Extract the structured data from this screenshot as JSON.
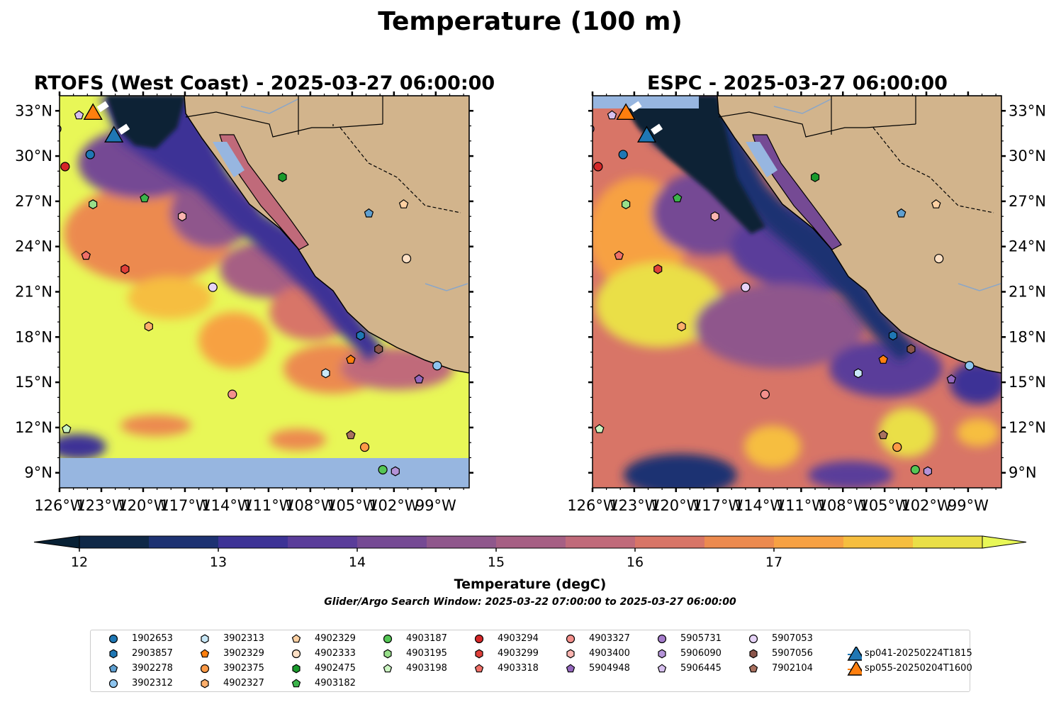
{
  "figure_title": "Temperature (100 m)",
  "panels": [
    {
      "id": "rtofs",
      "title": "RTOFS (West Coast) - 2025-03-27 06:00:00"
    },
    {
      "id": "espc",
      "title": "ESPC - 2025-03-27 06:00:00"
    }
  ],
  "axes": {
    "lat_ticks": [
      "33°N",
      "30°N",
      "27°N",
      "24°N",
      "21°N",
      "18°N",
      "15°N",
      "12°N",
      "9°N"
    ],
    "lon_ticks": [
      "126°W",
      "123°W",
      "120°W",
      "117°W",
      "114°W",
      "111°W",
      "108°W",
      "105°W",
      "102°W",
      "99°W"
    ],
    "lon_range": [
      -126,
      -96.6
    ],
    "lat_range": [
      8.0,
      34.0
    ]
  },
  "colorbar": {
    "label": "Temperature (degC)",
    "ticks": [
      "12",
      "13",
      "14",
      "15",
      "16",
      "17"
    ],
    "min": 11.5,
    "max": 18.0,
    "colors": [
      "#082135",
      "#0f2847",
      "#1d3272",
      "#3d3396",
      "#5a3d9a",
      "#754a94",
      "#8f578c",
      "#a65f84",
      "#c06a7a",
      "#d87567",
      "#ec8a4f",
      "#f7a143",
      "#f6be3f",
      "#eadf47",
      "#e8f757"
    ]
  },
  "search_window": "Glider/Argo Search Window: 2025-03-22 07:00:00 to 2025-03-27 06:00:00",
  "colors": {
    "land": "#d2b48c",
    "nodata": "#97b6e0"
  },
  "floats": [
    {
      "id": "1902653",
      "shape": "circle",
      "color": "#1f77b4",
      "lon": -123.8,
      "lat": 30.1
    },
    {
      "id": "2903857",
      "shape": "hexagon",
      "color": "#1f77b4",
      "lon": -104.4,
      "lat": 18.1
    },
    {
      "id": "3902278",
      "shape": "pentagon",
      "color": "#5f9fd0",
      "lon": -103.8,
      "lat": 26.2
    },
    {
      "id": "3902312",
      "shape": "circle",
      "color": "#8ec5ef",
      "lon": -98.9,
      "lat": 16.1
    },
    {
      "id": "3902313",
      "shape": "hexagon",
      "color": "#c8e8f7",
      "lon": -106.9,
      "lat": 15.6
    },
    {
      "id": "3902329",
      "shape": "pentagon",
      "color": "#ff7f0e",
      "lon": -105.1,
      "lat": 16.5
    },
    {
      "id": "3902375",
      "shape": "circle",
      "color": "#fd9a47",
      "lon": -104.1,
      "lat": 10.7
    },
    {
      "id": "4902327",
      "shape": "hexagon",
      "color": "#fdae6b",
      "lon": -119.6,
      "lat": 18.7
    },
    {
      "id": "4902329",
      "shape": "pentagon",
      "color": "#fdd0a2",
      "lon": -101.3,
      "lat": 26.8
    },
    {
      "id": "4902333",
      "shape": "circle",
      "color": "#fde0c5",
      "lon": -101.1,
      "lat": 23.2
    },
    {
      "id": "4902475",
      "shape": "hexagon",
      "color": "#1a9a2c",
      "lon": -110.0,
      "lat": 28.6
    },
    {
      "id": "4903182",
      "shape": "pentagon",
      "color": "#3cb44b",
      "lon": -119.9,
      "lat": 27.2
    },
    {
      "id": "4903187",
      "shape": "circle",
      "color": "#55c655",
      "lon": -102.8,
      "lat": 9.2
    },
    {
      "id": "4903195",
      "shape": "hexagon",
      "color": "#98df8a",
      "lon": -123.6,
      "lat": 26.8
    },
    {
      "id": "4903198",
      "shape": "pentagon",
      "color": "#ccf5c2",
      "lon": -125.5,
      "lat": 11.9
    },
    {
      "id": "4903294",
      "shape": "circle",
      "color": "#d62728",
      "lon": -125.6,
      "lat": 29.3
    },
    {
      "id": "4903299",
      "shape": "hexagon",
      "color": "#e0403a",
      "lon": -121.3,
      "lat": 22.5
    },
    {
      "id": "4903318",
      "shape": "pentagon",
      "color": "#f07068",
      "lon": -124.1,
      "lat": 23.4
    },
    {
      "id": "4903327",
      "shape": "circle",
      "color": "#f4908c",
      "lon": -113.6,
      "lat": 14.2
    },
    {
      "id": "4903400",
      "shape": "hexagon",
      "color": "#fbb4b0",
      "lon": -117.2,
      "lat": 26.0
    },
    {
      "id": "5904948",
      "shape": "pentagon",
      "color": "#9467bd",
      "lon": -100.2,
      "lat": 15.2
    },
    {
      "id": "5905731",
      "shape": "circle",
      "color": "#a57ccb",
      "lon": -126.2,
      "lat": 31.8
    },
    {
      "id": "5906090",
      "shape": "hexagon",
      "color": "#b493d8",
      "lon": -101.9,
      "lat": 9.1
    },
    {
      "id": "5906445",
      "shape": "pentagon",
      "color": "#d7c0ef",
      "lon": -124.6,
      "lat": 32.7
    },
    {
      "id": "5907053",
      "shape": "circle",
      "color": "#e6d3f7",
      "lon": -115.0,
      "lat": 21.3
    },
    {
      "id": "5907056",
      "shape": "hexagon",
      "color": "#8c564b",
      "lon": -103.1,
      "lat": 17.2
    },
    {
      "id": "7902104",
      "shape": "pentagon",
      "color": "#a8705f",
      "lon": -105.1,
      "lat": 11.5
    }
  ],
  "gliders": [
    {
      "id": "sp041-20250224T1815",
      "color": "#1f77b4",
      "lon": -122.1,
      "lat": 31.4
    },
    {
      "id": "sp055-20250204T1600",
      "color": "#ff7f0e",
      "lon": -123.6,
      "lat": 32.9
    }
  ]
}
